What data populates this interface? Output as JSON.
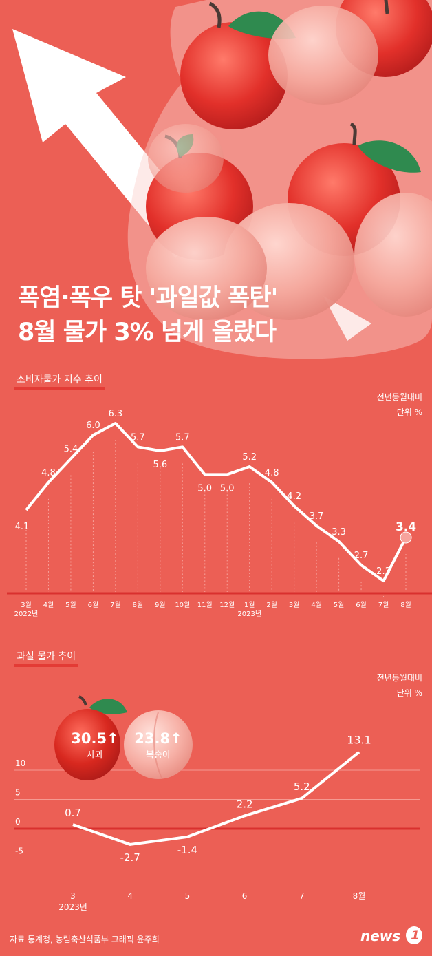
{
  "headline": {
    "line1": "폭염·폭우 탓 '과일값 폭탄'",
    "line2": "8월 물가 3% 넘게 올랐다"
  },
  "cpi": {
    "section_title": "소비자물가 지수 추이",
    "unit_line1": "전년동월대비",
    "unit_line2": "단위 %",
    "year_labels": [
      {
        "label": "2022년",
        "at": 0
      },
      {
        "label": "2023년",
        "at": 10
      }
    ]
  },
  "fruit": {
    "section_title": "과실 물가 추이",
    "unit_line1": "전년동월대비",
    "unit_line2": "단위 %",
    "year_label": "2023년",
    "apple": {
      "value": "30.5",
      "arrow": "↑",
      "name": "사과",
      "icon": "apple-icon"
    },
    "peach": {
      "value": "23.8",
      "arrow": "↑",
      "name": "복숭아",
      "icon": "peach-icon"
    }
  },
  "footer": {
    "source": "자료 통계청, 농림축산식품부   그래픽 윤주희",
    "logo_text": "news",
    "logo_num": "1"
  },
  "colors": {
    "background": "#ec5f55",
    "baseline": "#d9302e",
    "line": "#ffffff",
    "highlight": "#f7a39c"
  },
  "chart_data": [
    {
      "type": "line",
      "categories": [
        "3월",
        "4월",
        "5월",
        "6월",
        "7월",
        "8월",
        "9월",
        "10월",
        "11월",
        "12월",
        "1월",
        "2월",
        "3월",
        "4월",
        "5월",
        "6월",
        "7월",
        "8월"
      ],
      "values": [
        4.1,
        4.8,
        5.4,
        6.0,
        6.3,
        5.7,
        5.6,
        5.7,
        5.0,
        5.0,
        5.2,
        4.8,
        4.2,
        3.7,
        3.3,
        2.7,
        2.3,
        3.4
      ],
      "labels": [
        "4.1",
        "4.8",
        "5.4",
        "6.0",
        "6.3",
        "5.7",
        "5.6",
        "5.7",
        "5.0",
        "5.0",
        "5.2",
        "4.8",
        "4.2",
        "3.7",
        "3.3",
        "2.7",
        "2.3",
        "3.4"
      ],
      "highlight_last": true,
      "grid": false,
      "title": "소비자물가 지수 추이"
    },
    {
      "type": "line",
      "categories": [
        "3",
        "4",
        "5",
        "6",
        "7",
        "8월"
      ],
      "values": [
        0.7,
        -2.7,
        -1.4,
        2.2,
        5.2,
        13.1
      ],
      "labels": [
        "0.7",
        "-2.7",
        "-1.4",
        "2.2",
        "5.2",
        "13.1"
      ],
      "yticks": [
        "10",
        "5",
        "0",
        "-5"
      ],
      "ytick_values": [
        10,
        5,
        0,
        -5
      ],
      "grid": true,
      "title": "과실 물가 추이"
    }
  ]
}
